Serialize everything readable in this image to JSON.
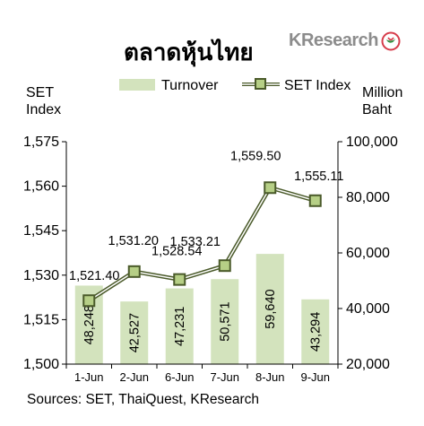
{
  "header": {
    "title": "ตลาดหุ้นไทย",
    "logo_text": "KResearch"
  },
  "axis_titles": {
    "left_line1": "SET",
    "left_line2": "Index",
    "right_line1": "Million",
    "right_line2": "Baht"
  },
  "source": "Sources: SET, ThaiQuest, KResearch",
  "colors": {
    "bar": "#d3e3bd",
    "line": "#4a5a2a",
    "line_inner": "#ffffff",
    "marker_fill": "#b6cf86",
    "marker_stroke": "#4a5a2a"
  },
  "chart_data": {
    "type": "bar+line",
    "title": "ตลาดหุ้นไทย",
    "categories": [
      "1-Jun",
      "2-Jun",
      "6-Jun",
      "7-Jun",
      "8-Jun",
      "9-Jun"
    ],
    "series": [
      {
        "name": "Turnover",
        "type": "bar",
        "axis": "right",
        "values": [
          48248,
          42527,
          47231,
          50571,
          59640,
          43294
        ],
        "labels": [
          "48,248",
          "42,527",
          "47,231",
          "50,571",
          "59,640",
          "43,294"
        ]
      },
      {
        "name": "SET Index",
        "type": "line",
        "axis": "left",
        "values": [
          1521.4,
          1531.2,
          1528.54,
          1533.21,
          1559.5,
          1555.11
        ],
        "labels": [
          "1,521.40",
          "1,531.20",
          "1,528.54",
          "1,533.21",
          "1,559.50",
          "1,555.11"
        ]
      }
    ],
    "y_left": {
      "label": "SET Index",
      "ylim": [
        1500,
        1575
      ],
      "ticks": [
        1500,
        1515,
        1530,
        1545,
        1560,
        1575
      ],
      "tick_labels": [
        "1,500",
        "1,515",
        "1,530",
        "1,545",
        "1,560",
        "1,575"
      ]
    },
    "y_right": {
      "label": "Million Baht",
      "ylim": [
        20000,
        100000
      ],
      "ticks": [
        20000,
        40000,
        60000,
        80000,
        100000
      ],
      "tick_labels": [
        "20,000",
        "40,000",
        "60,000",
        "80,000",
        "100,000"
      ]
    },
    "legend": {
      "placement": "top",
      "items": [
        "Turnover",
        "SET Index"
      ]
    },
    "grid": false
  }
}
